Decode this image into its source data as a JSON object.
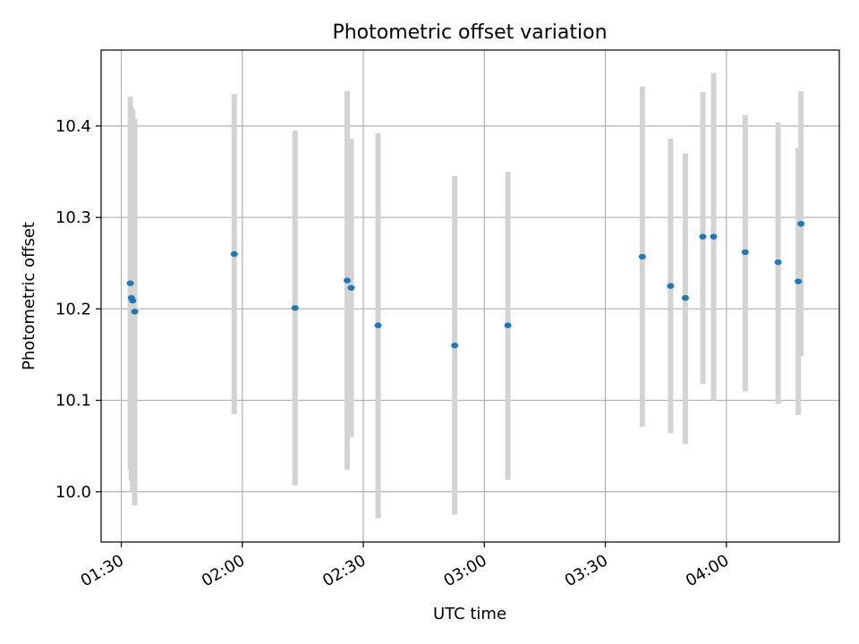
{
  "chart_data": {
    "type": "scatter",
    "title": "Photometric offset variation",
    "xlabel": "UTC time",
    "ylabel": "Photometric offset",
    "grid": true,
    "x_axis": {
      "kind": "time",
      "range": [
        "01:25",
        "04:28"
      ],
      "ticks": [
        "01:30",
        "02:00",
        "02:30",
        "03:00",
        "03:30",
        "04:00"
      ]
    },
    "y_axis": {
      "range": [
        9.945,
        10.483
      ],
      "ticks": [
        10.0,
        10.1,
        10.2,
        10.3,
        10.4
      ],
      "tick_labels": [
        "10.0",
        "10.1",
        "10.2",
        "10.3",
        "10.4"
      ]
    },
    "point_color": "#1f77b4",
    "errorbar_color": "#d3d3d3",
    "points": [
      {
        "x": "01:32:15",
        "y": 10.228,
        "lo": 10.024,
        "hi": 10.432
      },
      {
        "x": "01:32:30",
        "y": 10.212,
        "lo": 10.012,
        "hi": 10.42
      },
      {
        "x": "01:32:50",
        "y": 10.209,
        "lo": 10.0,
        "hi": 10.418
      },
      {
        "x": "01:33:20",
        "y": 10.197,
        "lo": 9.985,
        "hi": 10.408
      },
      {
        "x": "01:58:00",
        "y": 10.26,
        "lo": 10.085,
        "hi": 10.435
      },
      {
        "x": "02:13:05",
        "y": 10.201,
        "lo": 10.007,
        "hi": 10.395
      },
      {
        "x": "02:26:00",
        "y": 10.231,
        "lo": 10.024,
        "hi": 10.438
      },
      {
        "x": "02:27:00",
        "y": 10.223,
        "lo": 10.06,
        "hi": 10.386
      },
      {
        "x": "02:33:40",
        "y": 10.182,
        "lo": 9.971,
        "hi": 10.392
      },
      {
        "x": "02:52:40",
        "y": 10.16,
        "lo": 9.975,
        "hi": 10.345
      },
      {
        "x": "03:05:50",
        "y": 10.182,
        "lo": 10.013,
        "hi": 10.35
      },
      {
        "x": "03:39:10",
        "y": 10.257,
        "lo": 10.071,
        "hi": 10.443
      },
      {
        "x": "03:46:10",
        "y": 10.225,
        "lo": 10.064,
        "hi": 10.386
      },
      {
        "x": "03:49:50",
        "y": 10.212,
        "lo": 10.052,
        "hi": 10.37
      },
      {
        "x": "03:54:10",
        "y": 10.279,
        "lo": 10.118,
        "hi": 10.437
      },
      {
        "x": "03:56:50",
        "y": 10.279,
        "lo": 10.1,
        "hi": 10.458
      },
      {
        "x": "04:04:40",
        "y": 10.262,
        "lo": 10.11,
        "hi": 10.412
      },
      {
        "x": "04:12:50",
        "y": 10.251,
        "lo": 10.096,
        "hi": 10.404
      },
      {
        "x": "04:17:50",
        "y": 10.23,
        "lo": 10.084,
        "hi": 10.376
      },
      {
        "x": "04:18:30",
        "y": 10.293,
        "lo": 10.148,
        "hi": 10.438
      }
    ]
  }
}
